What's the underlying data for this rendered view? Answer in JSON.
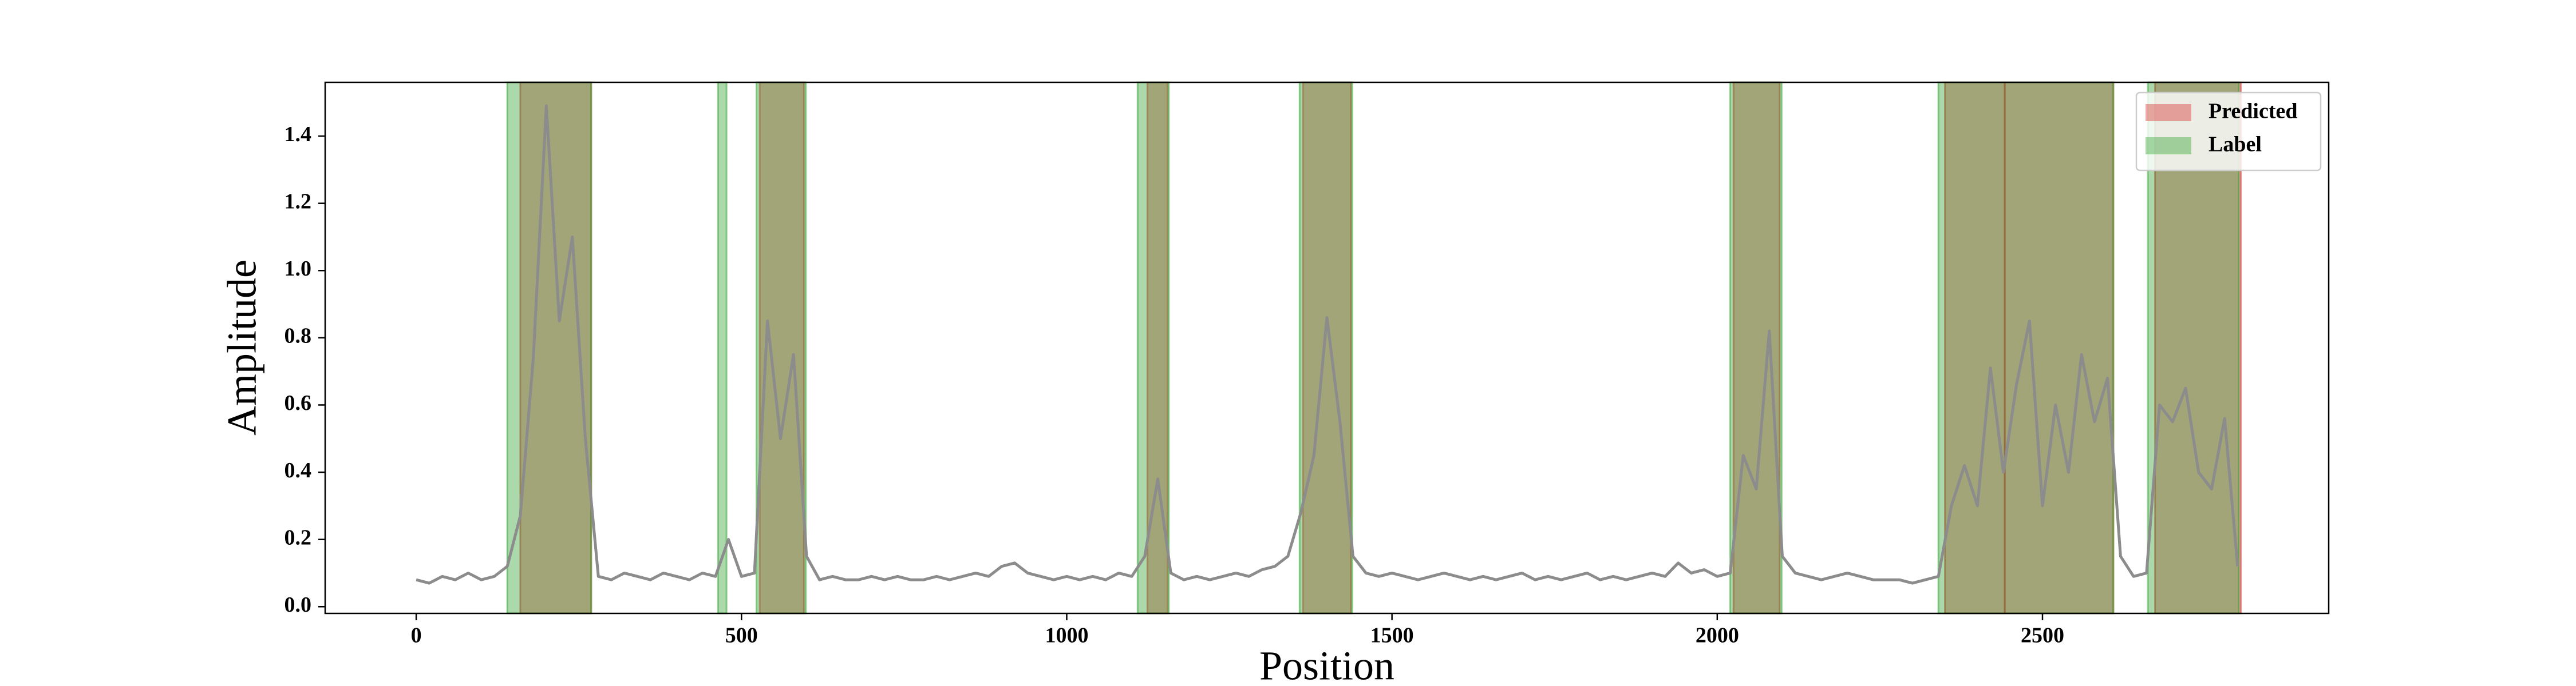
{
  "chart_data": {
    "type": "line",
    "xlabel": "Position",
    "ylabel": "Amplitude",
    "xlim": [
      -140,
      2940
    ],
    "ylim": [
      -0.02,
      1.56
    ],
    "xticks": [
      0,
      500,
      1000,
      1500,
      2000,
      2500
    ],
    "yticks": [
      {
        "value": 0,
        "label": "0.0"
      },
      0.2,
      0.4,
      0.6,
      0.8,
      {
        "value": 1,
        "label": "1.0"
      },
      1.2,
      1.4
    ],
    "color": "#8c8c8c",
    "x": [
      0,
      20,
      40,
      60,
      80,
      100,
      120,
      140,
      160,
      180,
      200,
      220,
      240,
      260,
      280,
      300,
      320,
      340,
      360,
      380,
      400,
      420,
      440,
      460,
      480,
      500,
      520,
      540,
      560,
      580,
      600,
      620,
      640,
      660,
      680,
      700,
      720,
      740,
      760,
      780,
      800,
      820,
      840,
      860,
      880,
      900,
      920,
      940,
      960,
      980,
      1000,
      1020,
      1040,
      1060,
      1080,
      1100,
      1120,
      1140,
      1160,
      1180,
      1200,
      1220,
      1240,
      1260,
      1280,
      1300,
      1320,
      1340,
      1360,
      1380,
      1400,
      1420,
      1440,
      1460,
      1480,
      1500,
      1520,
      1540,
      1560,
      1580,
      1600,
      1620,
      1640,
      1660,
      1680,
      1700,
      1720,
      1740,
      1760,
      1780,
      1800,
      1820,
      1840,
      1860,
      1880,
      1900,
      1920,
      1940,
      1960,
      1980,
      2000,
      2020,
      2040,
      2060,
      2080,
      2100,
      2120,
      2140,
      2160,
      2180,
      2200,
      2220,
      2240,
      2260,
      2280,
      2300,
      2320,
      2340,
      2360,
      2380,
      2400,
      2420,
      2440,
      2460,
      2480,
      2500,
      2520,
      2540,
      2560,
      2580,
      2600,
      2620,
      2640,
      2660,
      2680,
      2700,
      2720,
      2740,
      2760,
      2780,
      2800
    ],
    "values": [
      0.08,
      0.07,
      0.09,
      0.08,
      0.1,
      0.08,
      0.09,
      0.12,
      0.27,
      0.74,
      1.49,
      0.85,
      1.1,
      0.5,
      0.09,
      0.08,
      0.1,
      0.09,
      0.08,
      0.1,
      0.09,
      0.08,
      0.1,
      0.09,
      0.2,
      0.09,
      0.1,
      0.85,
      0.5,
      0.75,
      0.15,
      0.08,
      0.09,
      0.08,
      0.08,
      0.09,
      0.08,
      0.09,
      0.08,
      0.08,
      0.09,
      0.08,
      0.09,
      0.1,
      0.09,
      0.12,
      0.13,
      0.1,
      0.09,
      0.08,
      0.09,
      0.08,
      0.09,
      0.08,
      0.1,
      0.09,
      0.15,
      0.38,
      0.1,
      0.08,
      0.09,
      0.08,
      0.09,
      0.1,
      0.09,
      0.11,
      0.12,
      0.15,
      0.28,
      0.45,
      0.86,
      0.55,
      0.15,
      0.1,
      0.09,
      0.1,
      0.09,
      0.08,
      0.09,
      0.1,
      0.09,
      0.08,
      0.09,
      0.08,
      0.09,
      0.1,
      0.08,
      0.09,
      0.08,
      0.09,
      0.1,
      0.08,
      0.09,
      0.08,
      0.09,
      0.1,
      0.09,
      0.13,
      0.1,
      0.11,
      0.09,
      0.1,
      0.45,
      0.35,
      0.82,
      0.15,
      0.1,
      0.09,
      0.08,
      0.09,
      0.1,
      0.09,
      0.08,
      0.08,
      0.08,
      0.07,
      0.08,
      0.09,
      0.3,
      0.42,
      0.3,
      0.71,
      0.4,
      0.66,
      0.85,
      0.3,
      0.6,
      0.4,
      0.75,
      0.55,
      0.68,
      0.15,
      0.09,
      0.1,
      0.6,
      0.55,
      0.65,
      0.4,
      0.35,
      0.56,
      0.12
    ],
    "spans": [
      {
        "name": "Predicted",
        "color": "#d62728",
        "ranges": [
          [
            160,
            269
          ],
          [
            528,
            596
          ],
          [
            1124,
            1155
          ],
          [
            1363,
            1437
          ],
          [
            2025,
            2096
          ],
          [
            2350,
            2442
          ],
          [
            2442,
            2609
          ],
          [
            2673,
            2805
          ]
        ]
      },
      {
        "name": "Label",
        "color": "#2ca02c",
        "ranges": [
          [
            140,
            269
          ],
          [
            464,
            477
          ],
          [
            523,
            599
          ],
          [
            1109,
            1157
          ],
          [
            1358,
            1439
          ],
          [
            2020,
            2099
          ],
          [
            2340,
            2609
          ],
          [
            2662,
            2802
          ]
        ]
      }
    ],
    "legend": "upper right"
  }
}
